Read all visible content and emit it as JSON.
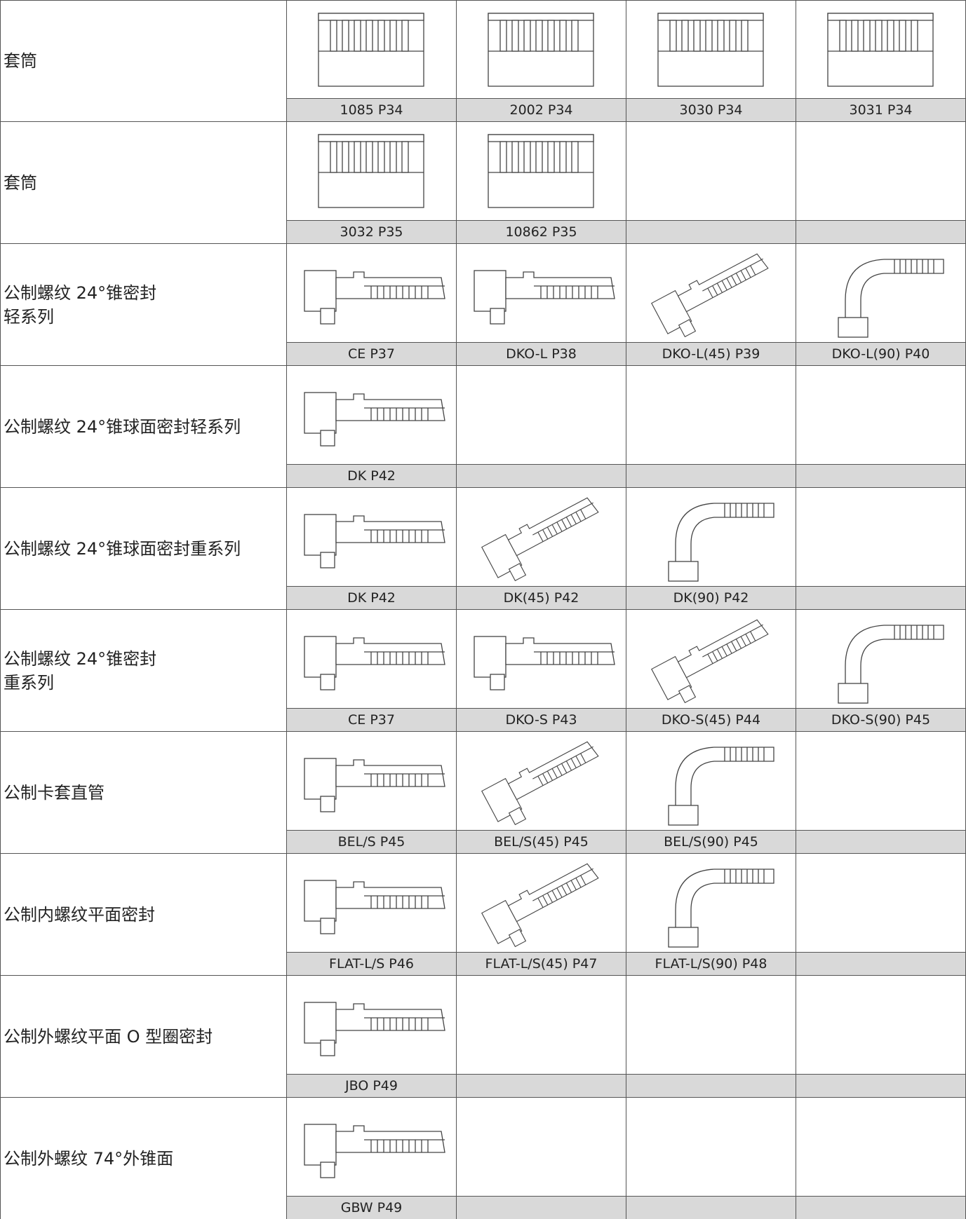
{
  "table": {
    "rows": [
      {
        "label": [
          "套筒"
        ],
        "items": [
          "1085 P34",
          "2002 P34",
          "3030 P34",
          "3031 P34"
        ]
      },
      {
        "label": [
          "套筒"
        ],
        "items": [
          "3032 P35",
          "10862 P35"
        ]
      },
      {
        "label": [
          "公制螺纹 24°锥密封",
          "轻系列"
        ],
        "items": [
          "CE P37",
          "DKO-L P38",
          "DKO-L(45) P39",
          "DKO-L(90) P40"
        ]
      },
      {
        "label": [
          "公制螺纹 24°锥球面密封轻系列"
        ],
        "items": [
          "DK P42"
        ]
      },
      {
        "label": [
          "公制螺纹 24°锥球面密封重系列"
        ],
        "items": [
          "DK P42",
          "DK(45) P42",
          "DK(90) P42"
        ]
      },
      {
        "label": [
          "公制螺纹 24°锥密封",
          "重系列"
        ],
        "items": [
          "CE P37",
          "DKO-S P43",
          "DKO-S(45) P44",
          "DKO-S(90) P45"
        ]
      },
      {
        "label": [
          "公制卡套直管"
        ],
        "items": [
          "BEL/S P45",
          "BEL/S(45) P45",
          "BEL/S(90) P45"
        ]
      },
      {
        "label": [
          "公制内螺纹平面密封"
        ],
        "items": [
          "FLAT-L/S P46",
          "FLAT-L/S(45) P47",
          "FLAT-L/S(90) P48"
        ]
      },
      {
        "label": [
          "公制外螺纹平面 O 型圈密封"
        ],
        "items": [
          "JBO P49"
        ]
      },
      {
        "label": [
          "公制外螺纹 74°外锥面"
        ],
        "items": [
          "GBW P49"
        ]
      }
    ]
  }
}
